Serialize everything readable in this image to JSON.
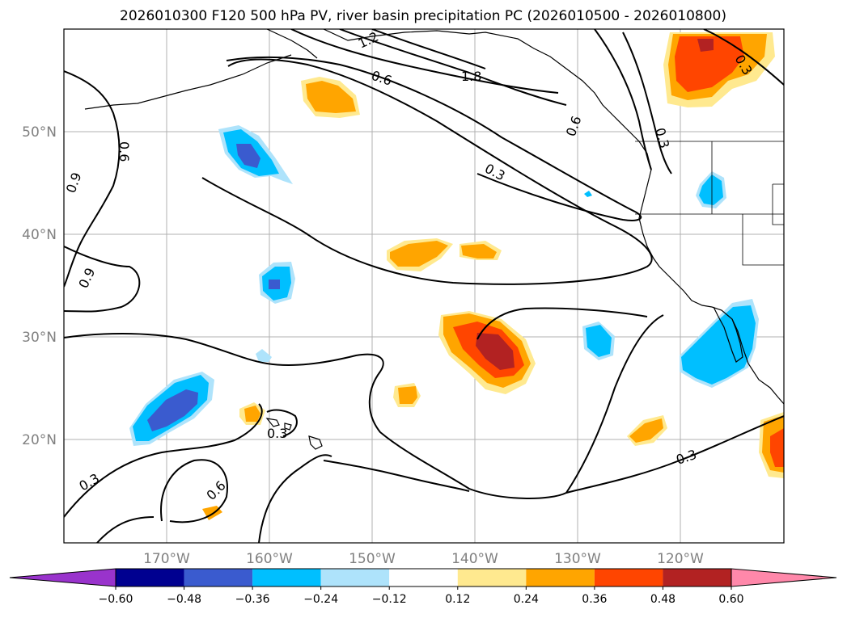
{
  "title": "2026010300 F120 500 hPa PV, river basin precipitation PC (2026010500 - 2026010800)",
  "lat_labels": [
    "50°N",
    "40°N",
    "30°N",
    "20°N"
  ],
  "lon_labels": [
    "170°W",
    "160°W",
    "150°W",
    "140°W",
    "130°W",
    "120°W"
  ],
  "contour_labels": [
    "1.2",
    "0.6",
    "1.8",
    "0.6",
    "0.3",
    "0.3",
    "0.6",
    "0.9",
    "0.9",
    "0.3",
    "0.6",
    "0.3",
    "0.3"
  ],
  "colorbar": {
    "tick_labels": [
      "−0.60",
      "−0.48",
      "−0.36",
      "−0.24",
      "−0.12",
      "0.12",
      "0.24",
      "0.36",
      "0.48",
      "0.60"
    ],
    "colors": [
      "#9933cc",
      "#000090",
      "#3a5bcf",
      "#00bfff",
      "#aee3fb",
      "#ffffff",
      "#ffe98f",
      "#ffa500",
      "#ff4500",
      "#b22222",
      "#ff88aa"
    ]
  },
  "colors": {
    "grid": "#b0b0b0",
    "contour": "#000000",
    "coast": "#000000"
  }
}
